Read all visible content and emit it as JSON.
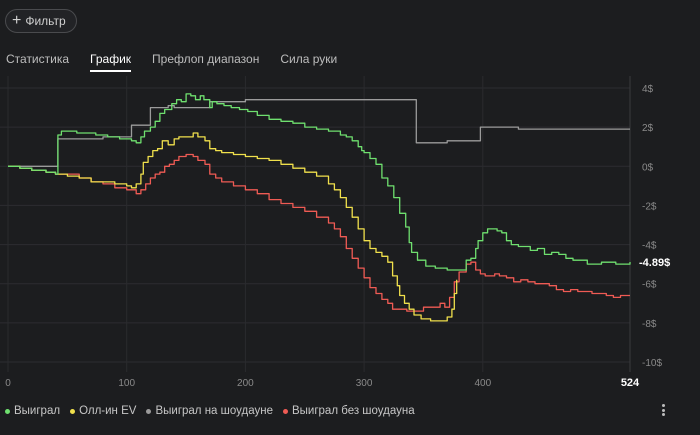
{
  "filter": {
    "label": "Фильтр",
    "icon": "plus-icon"
  },
  "tabs": [
    {
      "label": "Статистика",
      "active": false
    },
    {
      "label": "График",
      "active": true
    },
    {
      "label": "Префлоп диапазон",
      "active": false
    },
    {
      "label": "Сила руки",
      "active": false
    }
  ],
  "chart_data": {
    "type": "line",
    "xlim": [
      0,
      524
    ],
    "ylim": [
      -10,
      4
    ],
    "x_ticks": [
      "0",
      "100",
      "200",
      "300",
      "400"
    ],
    "x_end_label": "524",
    "y_ticks": [
      "4$",
      "2$",
      "0$",
      "-2$",
      "-4$",
      "-6$",
      "-8$",
      "-10$"
    ],
    "end_value_label": "-4.89$",
    "grid": true,
    "legend_position": "bottom",
    "series": [
      {
        "name": "Выиграл",
        "color": "#6fe06f",
        "points": [
          [
            0,
            0
          ],
          [
            10,
            -0.1
          ],
          [
            20,
            -0.2
          ],
          [
            32,
            -0.3
          ],
          [
            40,
            -0.4
          ],
          [
            42,
            1.6
          ],
          [
            45,
            1.8
          ],
          [
            50,
            1.8
          ],
          [
            58,
            1.7
          ],
          [
            66,
            1.7
          ],
          [
            74,
            1.6
          ],
          [
            84,
            1.5
          ],
          [
            94,
            1.4
          ],
          [
            100,
            1.4
          ],
          [
            104,
            1.3
          ],
          [
            108,
            1.2
          ],
          [
            112,
            1.5
          ],
          [
            115,
            1.8
          ],
          [
            120,
            2.0
          ],
          [
            124,
            2.3
          ],
          [
            128,
            2.7
          ],
          [
            132,
            2.9
          ],
          [
            138,
            3.2
          ],
          [
            142,
            3.4
          ],
          [
            146,
            3.3
          ],
          [
            150,
            3.7
          ],
          [
            154,
            3.6
          ],
          [
            158,
            3.4
          ],
          [
            162,
            3.6
          ],
          [
            165,
            3.4
          ],
          [
            170,
            3.0
          ],
          [
            172,
            3.3
          ],
          [
            176,
            3.2
          ],
          [
            182,
            3.1
          ],
          [
            188,
            3.0
          ],
          [
            195,
            2.9
          ],
          [
            202,
            2.8
          ],
          [
            210,
            2.6
          ],
          [
            220,
            2.4
          ],
          [
            230,
            2.3
          ],
          [
            240,
            2.2
          ],
          [
            250,
            2.0
          ],
          [
            260,
            1.9
          ],
          [
            270,
            1.8
          ],
          [
            280,
            1.6
          ],
          [
            285,
            1.5
          ],
          [
            290,
            1.3
          ],
          [
            295,
            1.0
          ],
          [
            298,
            0.8
          ],
          [
            300,
            0.7
          ],
          [
            305,
            0.4
          ],
          [
            310,
            0.1
          ],
          [
            315,
            -0.6
          ],
          [
            320,
            -1.0
          ],
          [
            325,
            -1.6
          ],
          [
            330,
            -2.4
          ],
          [
            332,
            -2.4
          ],
          [
            335,
            -3.1
          ],
          [
            338,
            -3.9
          ],
          [
            340,
            -4.4
          ],
          [
            345,
            -4.8
          ],
          [
            352,
            -5.1
          ],
          [
            360,
            -5.2
          ],
          [
            370,
            -5.3
          ],
          [
            380,
            -5.3
          ],
          [
            386,
            -4.8
          ],
          [
            390,
            -4.7
          ],
          [
            394,
            -4.2
          ],
          [
            396,
            -3.8
          ],
          [
            400,
            -3.4
          ],
          [
            404,
            -3.2
          ],
          [
            408,
            -3.2
          ],
          [
            412,
            -3.3
          ],
          [
            416,
            -3.4
          ],
          [
            420,
            -3.8
          ],
          [
            424,
            -4.0
          ],
          [
            430,
            -4.1
          ],
          [
            440,
            -4.3
          ],
          [
            446,
            -4.2
          ],
          [
            452,
            -4.5
          ],
          [
            458,
            -4.4
          ],
          [
            464,
            -4.5
          ],
          [
            470,
            -4.7
          ],
          [
            476,
            -4.8
          ],
          [
            482,
            -4.8
          ],
          [
            488,
            -5.0
          ],
          [
            494,
            -5.0
          ],
          [
            500,
            -4.9
          ],
          [
            506,
            -4.9
          ],
          [
            512,
            -5.0
          ],
          [
            518,
            -5.0
          ],
          [
            524,
            -4.89
          ]
        ]
      },
      {
        "name": "Олл-ин EV",
        "color": "#f0e04c",
        "points": [
          [
            0,
            0
          ],
          [
            10,
            -0.1
          ],
          [
            20,
            -0.2
          ],
          [
            32,
            -0.3
          ],
          [
            40,
            -0.4
          ],
          [
            42,
            -0.4
          ],
          [
            50,
            -0.5
          ],
          [
            60,
            -0.6
          ],
          [
            70,
            -0.8
          ],
          [
            80,
            -0.8
          ],
          [
            90,
            -0.9
          ],
          [
            100,
            -1.0
          ],
          [
            104,
            -1.1
          ],
          [
            108,
            -0.9
          ],
          [
            112,
            -0.4
          ],
          [
            114,
            0.2
          ],
          [
            118,
            0.5
          ],
          [
            122,
            0.8
          ],
          [
            126,
            0.9
          ],
          [
            130,
            1.3
          ],
          [
            135,
            1.1
          ],
          [
            140,
            1.4
          ],
          [
            144,
            1.5
          ],
          [
            150,
            1.5
          ],
          [
            156,
            1.7
          ],
          [
            160,
            1.5
          ],
          [
            166,
            1.3
          ],
          [
            170,
            0.9
          ],
          [
            175,
            0.8
          ],
          [
            180,
            0.7
          ],
          [
            190,
            0.6
          ],
          [
            200,
            0.5
          ],
          [
            210,
            0.4
          ],
          [
            220,
            0.3
          ],
          [
            230,
            0.1
          ],
          [
            240,
            -0.1
          ],
          [
            250,
            -0.3
          ],
          [
            260,
            -0.5
          ],
          [
            270,
            -0.9
          ],
          [
            275,
            -1.2
          ],
          [
            280,
            -1.6
          ],
          [
            285,
            -2.1
          ],
          [
            290,
            -2.6
          ],
          [
            295,
            -3.2
          ],
          [
            300,
            -3.8
          ],
          [
            305,
            -4.2
          ],
          [
            310,
            -4.4
          ],
          [
            315,
            -4.6
          ],
          [
            320,
            -4.9
          ],
          [
            324,
            -5.6
          ],
          [
            328,
            -6.1
          ],
          [
            330,
            -6.6
          ],
          [
            334,
            -7.0
          ],
          [
            338,
            -7.3
          ],
          [
            342,
            -7.6
          ],
          [
            348,
            -7.8
          ],
          [
            356,
            -7.9
          ],
          [
            362,
            -7.9
          ],
          [
            368,
            -7.9
          ],
          [
            370,
            -7.7
          ],
          [
            374,
            -7.3
          ],
          [
            376,
            -6.5
          ],
          [
            378,
            -5.8
          ]
        ]
      },
      {
        "name": "Выиграл на шоудауне",
        "color": "#9b9b9b",
        "points": [
          [
            0,
            0
          ],
          [
            10,
            0
          ],
          [
            20,
            0
          ],
          [
            32,
            0
          ],
          [
            40,
            0
          ],
          [
            42,
            1.4
          ],
          [
            60,
            1.4
          ],
          [
            80,
            1.5
          ],
          [
            95,
            1.5
          ],
          [
            104,
            2.1
          ],
          [
            116,
            2.1
          ],
          [
            120,
            3.0
          ],
          [
            135,
            3.1
          ],
          [
            140,
            3.0
          ],
          [
            150,
            3.0
          ],
          [
            170,
            3.3
          ],
          [
            200,
            3.4
          ],
          [
            250,
            3.4
          ],
          [
            300,
            3.4
          ],
          [
            340,
            3.4
          ],
          [
            344,
            1.2
          ],
          [
            350,
            1.2
          ],
          [
            370,
            1.3
          ],
          [
            390,
            1.3
          ],
          [
            394,
            1.3
          ],
          [
            398,
            2.0
          ],
          [
            420,
            2.0
          ],
          [
            430,
            1.9
          ],
          [
            460,
            1.9
          ],
          [
            524,
            1.9
          ]
        ]
      },
      {
        "name": "Выиграл без шоудауна",
        "color": "#ef5b54",
        "points": [
          [
            0,
            0
          ],
          [
            10,
            -0.1
          ],
          [
            20,
            -0.2
          ],
          [
            32,
            -0.3
          ],
          [
            40,
            -0.4
          ],
          [
            42,
            -0.4
          ],
          [
            50,
            -0.4
          ],
          [
            60,
            -0.6
          ],
          [
            70,
            -0.8
          ],
          [
            80,
            -0.9
          ],
          [
            90,
            -1.1
          ],
          [
            100,
            -1.2
          ],
          [
            104,
            -1.2
          ],
          [
            108,
            -1.4
          ],
          [
            112,
            -1.2
          ],
          [
            116,
            -0.9
          ],
          [
            120,
            -0.6
          ],
          [
            124,
            -0.4
          ],
          [
            128,
            -0.3
          ],
          [
            132,
            0
          ],
          [
            136,
            0.1
          ],
          [
            140,
            0.3
          ],
          [
            144,
            0.5
          ],
          [
            150,
            0.6
          ],
          [
            156,
            0.5
          ],
          [
            160,
            0.3
          ],
          [
            166,
            0.1
          ],
          [
            170,
            -0.4
          ],
          [
            175,
            -0.6
          ],
          [
            180,
            -0.8
          ],
          [
            190,
            -1.0
          ],
          [
            200,
            -1.2
          ],
          [
            210,
            -1.4
          ],
          [
            220,
            -1.7
          ],
          [
            230,
            -1.9
          ],
          [
            240,
            -2.1
          ],
          [
            250,
            -2.3
          ],
          [
            260,
            -2.6
          ],
          [
            270,
            -2.9
          ],
          [
            275,
            -3.2
          ],
          [
            280,
            -3.6
          ],
          [
            285,
            -4.2
          ],
          [
            290,
            -4.7
          ],
          [
            295,
            -5.2
          ],
          [
            300,
            -5.7
          ],
          [
            305,
            -6.2
          ],
          [
            310,
            -6.5
          ],
          [
            315,
            -6.8
          ],
          [
            320,
            -7.0
          ],
          [
            324,
            -7.3
          ],
          [
            330,
            -7.3
          ],
          [
            336,
            -7.4
          ],
          [
            342,
            -7.4
          ],
          [
            350,
            -7.2
          ],
          [
            358,
            -7.2
          ],
          [
            364,
            -7.0
          ],
          [
            368,
            -7.2
          ],
          [
            372,
            -6.7
          ],
          [
            376,
            -5.9
          ],
          [
            380,
            -5.4
          ],
          [
            386,
            -5.0
          ],
          [
            390,
            -4.9
          ],
          [
            394,
            -5.3
          ],
          [
            398,
            -5.5
          ],
          [
            402,
            -5.6
          ],
          [
            406,
            -5.6
          ],
          [
            410,
            -5.5
          ],
          [
            414,
            -5.6
          ],
          [
            420,
            -5.7
          ],
          [
            426,
            -5.9
          ],
          [
            432,
            -5.8
          ],
          [
            438,
            -5.9
          ],
          [
            444,
            -6.0
          ],
          [
            450,
            -6.0
          ],
          [
            456,
            -6.1
          ],
          [
            462,
            -6.3
          ],
          [
            468,
            -6.4
          ],
          [
            474,
            -6.3
          ],
          [
            480,
            -6.4
          ],
          [
            486,
            -6.4
          ],
          [
            492,
            -6.5
          ],
          [
            498,
            -6.5
          ],
          [
            504,
            -6.6
          ],
          [
            510,
            -6.7
          ],
          [
            516,
            -6.6
          ],
          [
            524,
            -6.6
          ]
        ]
      }
    ]
  },
  "menu_icon": "vertical-dots-icon"
}
